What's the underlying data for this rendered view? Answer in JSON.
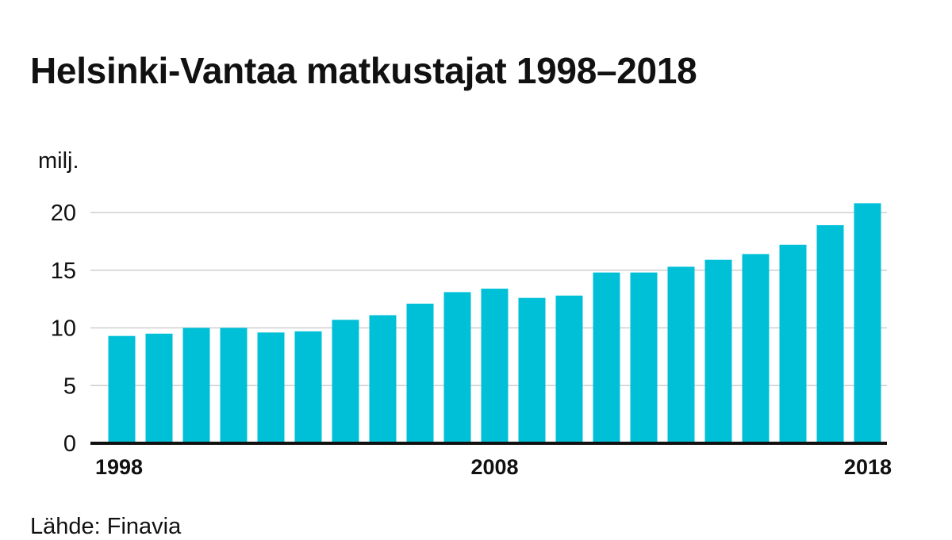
{
  "title": "Helsinki-Vantaa matkustajat 1998–2018",
  "source": "Lähde: Finavia",
  "colors": {
    "bar": "#00c0d8",
    "grid": "#cfcfcf",
    "axis": "#111111",
    "text": "#111111"
  },
  "chart_data": {
    "type": "bar",
    "title": "Helsinki-Vantaa matkustajat 1998–2018",
    "ylabel": "milj.",
    "xlabel": "",
    "ylim": [
      0,
      20
    ],
    "yticks": [
      0,
      5,
      10,
      15,
      20
    ],
    "categories": [
      "1998",
      "1999",
      "2000",
      "2001",
      "2002",
      "2003",
      "2004",
      "2005",
      "2006",
      "2007",
      "2008",
      "2009",
      "2010",
      "2011",
      "2012",
      "2013",
      "2014",
      "2015",
      "2016",
      "2017",
      "2018"
    ],
    "xtick_labels": [
      "1998",
      "2008",
      "2018"
    ],
    "values": [
      9.3,
      9.5,
      10.0,
      10.0,
      9.6,
      9.7,
      10.7,
      11.1,
      12.1,
      13.1,
      13.4,
      12.6,
      12.8,
      14.8,
      14.8,
      15.3,
      15.9,
      16.4,
      17.2,
      18.9,
      20.8
    ],
    "grid": "horizontal",
    "legend": "none"
  }
}
